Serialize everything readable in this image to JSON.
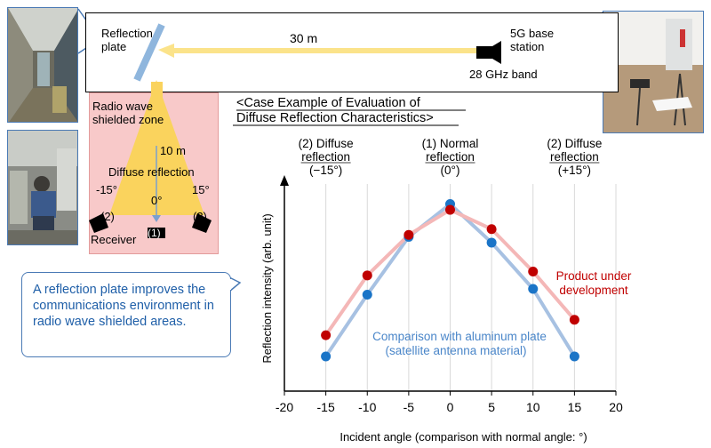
{
  "layout": {
    "reflection_plate_label": [
      "Reflection",
      "plate"
    ],
    "distance_label": "30 m",
    "base_station_label": [
      "5G base",
      "station"
    ],
    "band_label": "28 GHz band",
    "shield_zone_label": [
      "Radio wave",
      "shielded zone"
    ],
    "inner_distance_label": "10 m",
    "diffuse_label": "Diffuse reflection",
    "angle_left": "-15°",
    "angle_center": "0°",
    "angle_right": "15°",
    "receiver_label": "Receiver",
    "marker_left": "(2)",
    "marker_center": "(1)",
    "marker_right": "(2)"
  },
  "callout": {
    "text": "A reflection plate improves the communications environment in radio wave shielded areas."
  },
  "chart_title": [
    "<Case Example  of Evaluation of",
    "Diffuse Reflection Characteristics>"
  ],
  "chart_headers": [
    {
      "lines": [
        "(2) Diffuse",
        "reflection",
        "(−15°)"
      ],
      "x": -15
    },
    {
      "lines": [
        "(1) Normal",
        "reflection",
        "(0°)"
      ],
      "x": 0
    },
    {
      "lines": [
        "(2) Diffuse",
        "reflection",
        "(+15°)"
      ],
      "x": 15
    }
  ],
  "chart_data": {
    "type": "line",
    "x": [
      -15,
      -10,
      -5,
      0,
      5,
      10,
      15
    ],
    "series": [
      {
        "name": "Comparison with aluminum plate (satellite antenna material)",
        "color": "#1a74c7",
        "line_color": "#a7c1e2",
        "values": [
          0.18,
          0.5,
          0.8,
          0.97,
          0.77,
          0.53,
          0.18
        ]
      },
      {
        "name": "Product under development",
        "color": "#c00000",
        "line_color": "#f4b7b7",
        "values": [
          0.29,
          0.6,
          0.81,
          0.94,
          0.84,
          0.62,
          0.37
        ]
      }
    ],
    "xlabel": "Incident angle (comparison with normal angle: °)",
    "ylabel": "Reflection intensity (arb. unit)",
    "xlim": [
      -20,
      20
    ],
    "xticks": [
      -20,
      -15,
      -10,
      -5,
      0,
      5,
      10,
      15,
      20
    ],
    "ylim": [
      0,
      1.12
    ],
    "legend": {
      "product": [
        "Product under",
        "development"
      ],
      "aluminum": [
        "Comparison with aluminum plate",
        "(satellite antenna material)"
      ]
    }
  }
}
